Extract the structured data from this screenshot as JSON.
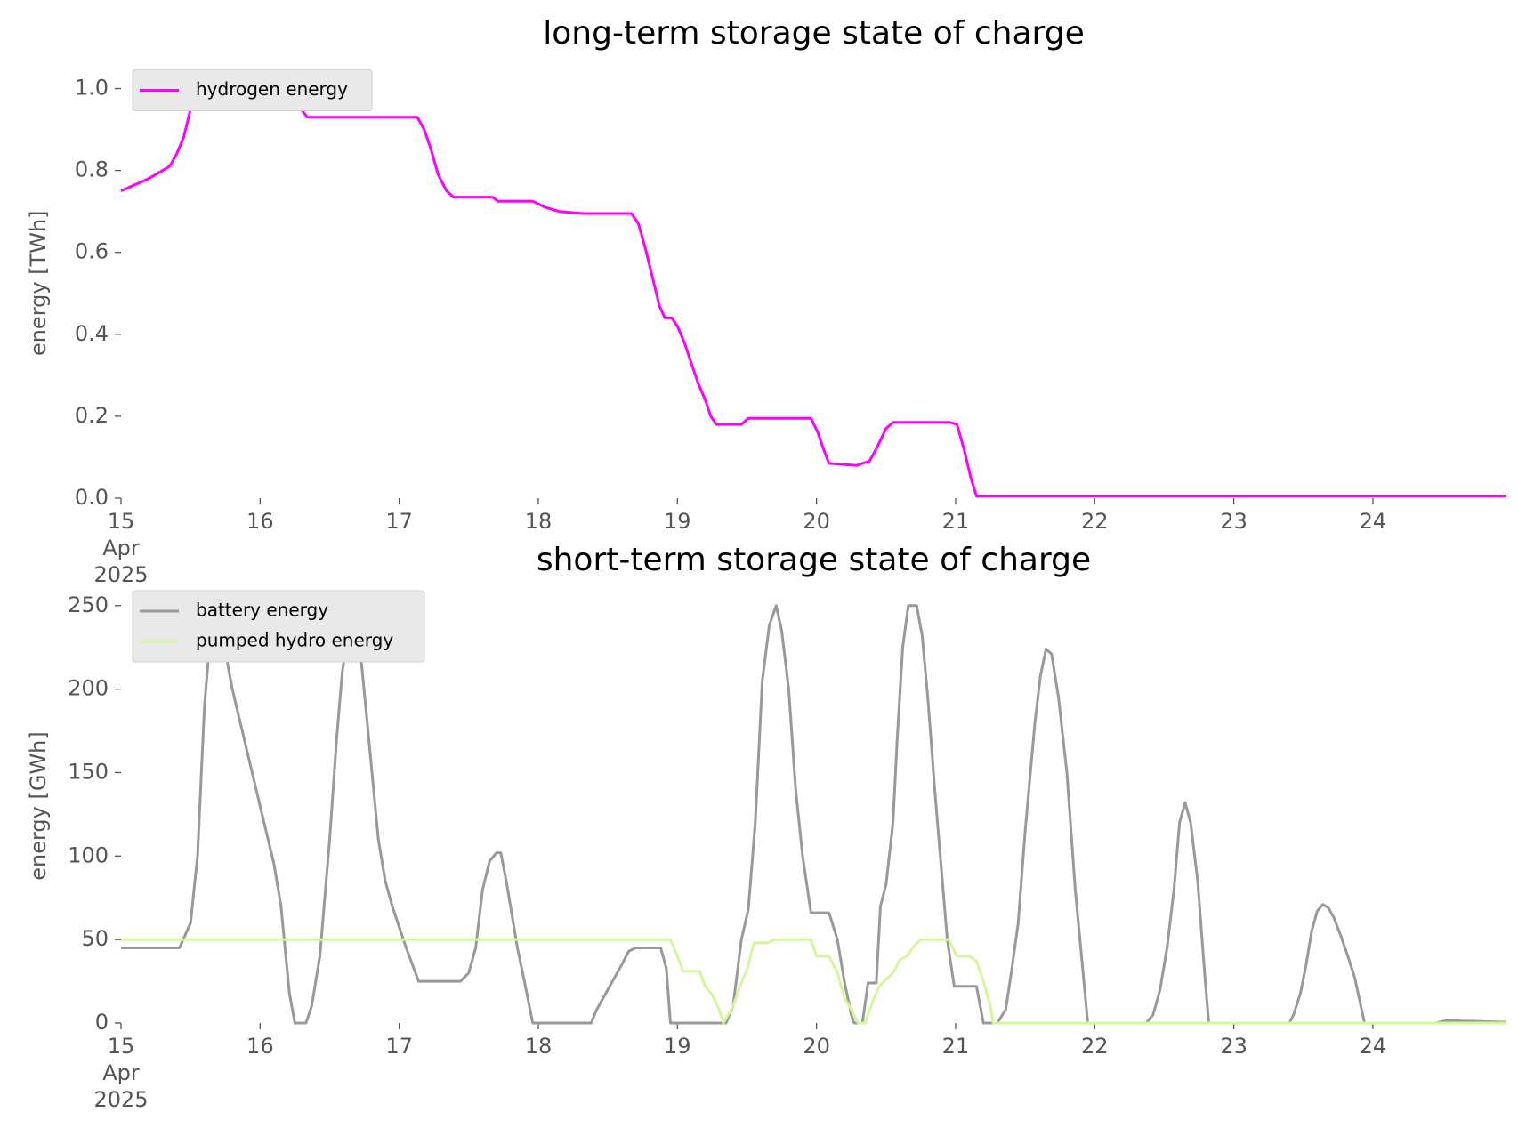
{
  "chart_data": [
    {
      "type": "line",
      "title": "long-term storage state of charge",
      "ylabel": "energy [TWh]",
      "xlim": [
        15,
        24.96
      ],
      "ylim": [
        0,
        1.05
      ],
      "xticks": [
        {
          "value": 15,
          "label": "15\nApr\n2025"
        },
        16,
        17,
        18,
        19,
        20,
        21,
        22,
        23,
        24
      ],
      "yticks": [
        {
          "value": 0,
          "label": "0.0"
        },
        0.2,
        0.4,
        0.6,
        0.8,
        {
          "value": 1,
          "label": "1.0"
        }
      ],
      "grid": false,
      "legend": "upper left",
      "series": [
        {
          "name": "hydrogen energy",
          "color": "#ff00ff",
          "x": [
            15.0,
            15.2,
            15.3,
            15.35,
            15.4,
            15.45,
            15.5,
            15.55,
            16.21,
            16.27,
            16.34,
            17.13,
            17.18,
            17.23,
            17.28,
            17.34,
            17.39,
            17.67,
            17.71,
            17.96,
            18.05,
            18.15,
            18.32,
            18.67,
            18.72,
            18.77,
            18.82,
            18.87,
            18.91,
            18.96,
            19.0,
            19.05,
            19.1,
            19.15,
            19.2,
            19.24,
            19.28,
            19.46,
            19.51,
            19.96,
            20.01,
            20.05,
            20.09,
            20.29,
            20.33,
            20.38,
            20.43,
            20.5,
            20.55,
            20.96,
            21.01,
            21.06,
            21.11,
            21.15,
            24.96
          ],
          "values": [
            0.75,
            0.78,
            0.8,
            0.81,
            0.84,
            0.88,
            0.95,
            1.02,
            1.02,
            0.96,
            0.93,
            0.93,
            0.9,
            0.85,
            0.79,
            0.75,
            0.735,
            0.735,
            0.725,
            0.725,
            0.71,
            0.7,
            0.695,
            0.695,
            0.67,
            0.61,
            0.54,
            0.47,
            0.44,
            0.44,
            0.42,
            0.38,
            0.33,
            0.28,
            0.24,
            0.2,
            0.18,
            0.18,
            0.195,
            0.195,
            0.16,
            0.12,
            0.085,
            0.08,
            0.085,
            0.09,
            0.12,
            0.17,
            0.185,
            0.185,
            0.18,
            0.12,
            0.05,
            0.005,
            0.005
          ]
        }
      ]
    },
    {
      "type": "line",
      "title": "short-term storage state of charge",
      "ylabel": "energy [GWh]",
      "xlim": [
        15,
        24.96
      ],
      "ylim": [
        0,
        260
      ],
      "xticks": [
        {
          "value": 15,
          "label": "15\nApr\n2025"
        },
        16,
        17,
        18,
        19,
        20,
        21,
        22,
        23,
        24
      ],
      "yticks": [
        0,
        50,
        100,
        150,
        200,
        250
      ],
      "grid": false,
      "legend": "upper left",
      "series": [
        {
          "name": "battery energy",
          "color": "#999999",
          "x": [
            15.0,
            15.42,
            15.5,
            15.55,
            15.6,
            15.65,
            15.7,
            15.8,
            15.9,
            16.0,
            16.1,
            16.15,
            16.21,
            16.25,
            16.33,
            16.37,
            16.43,
            16.5,
            16.55,
            16.59,
            16.66,
            16.7,
            16.77,
            16.85,
            16.9,
            16.95,
            17.05,
            17.14,
            17.44,
            17.5,
            17.55,
            17.6,
            17.65,
            17.7,
            17.73,
            17.77,
            17.85,
            17.9,
            17.96,
            18.38,
            18.42,
            18.5,
            18.6,
            18.65,
            18.7,
            18.88,
            18.92,
            18.95,
            19.35,
            19.4,
            19.46,
            19.51,
            19.56,
            19.61,
            19.66,
            19.71,
            19.75,
            19.8,
            19.85,
            19.9,
            19.96,
            20.09,
            20.15,
            20.2,
            20.25,
            20.27,
            20.33,
            20.37,
            20.43,
            20.46,
            20.5,
            20.55,
            20.58,
            20.62,
            20.66,
            20.72,
            20.76,
            20.8,
            20.85,
            20.9,
            20.94,
            20.99,
            21.15,
            21.2,
            21.3,
            21.36,
            21.4,
            21.45,
            21.5,
            21.57,
            21.61,
            21.65,
            21.69,
            21.74,
            21.8,
            21.86,
            21.95,
            22.37,
            22.42,
            22.47,
            22.52,
            22.57,
            22.61,
            22.65,
            22.69,
            22.74,
            22.79,
            22.82,
            23.4,
            23.43,
            23.48,
            23.52,
            23.56,
            23.6,
            23.64,
            23.68,
            23.72,
            23.77,
            23.82,
            23.87,
            23.94,
            24.45,
            24.53,
            24.96
          ],
          "values": [
            45,
            45,
            60,
            100,
            190,
            240,
            245,
            200,
            165,
            130,
            95,
            70,
            18,
            0,
            0,
            10,
            40,
            110,
            170,
            210,
            248,
            240,
            180,
            110,
            85,
            70,
            45,
            25,
            25,
            30,
            45,
            80,
            97,
            102,
            102,
            85,
            45,
            25,
            0,
            0,
            8,
            20,
            35,
            43,
            45,
            45,
            33,
            0,
            0,
            10,
            50,
            68,
            120,
            205,
            238,
            250,
            235,
            200,
            140,
            100,
            66,
            66,
            50,
            25,
            5,
            0,
            0,
            24,
            24,
            70,
            83,
            120,
            170,
            225,
            250,
            250,
            232,
            195,
            140,
            90,
            50,
            22,
            22,
            0,
            0,
            8,
            30,
            60,
            115,
            180,
            208,
            224,
            221,
            195,
            150,
            80,
            0,
            0,
            5,
            20,
            45,
            80,
            120,
            132,
            120,
            85,
            30,
            0,
            0,
            5,
            18,
            35,
            55,
            67,
            71,
            69,
            63,
            52,
            40,
            27,
            0,
            0,
            1.5,
            0.5
          ]
        },
        {
          "name": "pumped hydro energy",
          "color": "#d4f79a",
          "x": [
            15.0,
            18.95,
            19.0,
            19.04,
            19.16,
            19.2,
            19.25,
            19.3,
            19.33,
            19.4,
            19.45,
            19.5,
            19.55,
            19.65,
            19.7,
            19.96,
            20.0,
            20.09,
            20.15,
            20.2,
            20.25,
            20.3,
            20.35,
            20.4,
            20.45,
            20.5,
            20.55,
            20.6,
            20.65,
            20.7,
            20.75,
            20.95,
            21.01,
            21.1,
            21.15,
            21.2,
            21.25,
            21.27,
            24.96
          ],
          "values": [
            50,
            50,
            40,
            31,
            31,
            22,
            17,
            8,
            0,
            10,
            22,
            32,
            48,
            48,
            50,
            50,
            40,
            40,
            30,
            15,
            8,
            0,
            0,
            12,
            22,
            26,
            30,
            38,
            40,
            46,
            50,
            50,
            40,
            40,
            37,
            25,
            10,
            0,
            0
          ]
        }
      ]
    }
  ]
}
